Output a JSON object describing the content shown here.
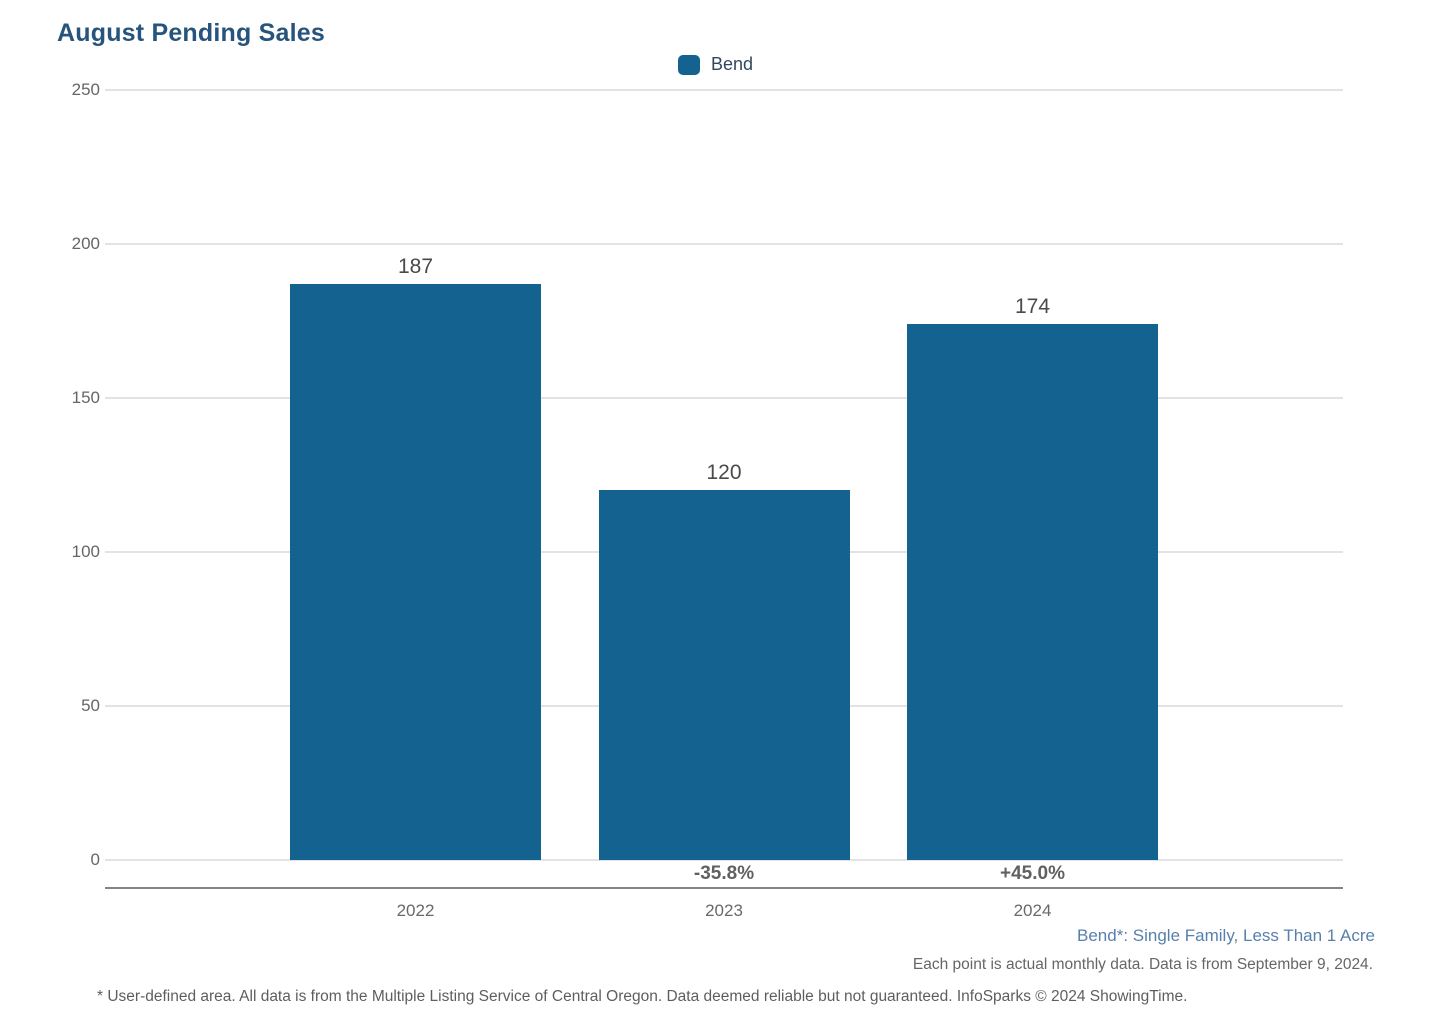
{
  "header": {
    "title": "August Pending Sales"
  },
  "legend": {
    "items": [
      {
        "label": "Bend",
        "color": "#136290",
        "swatch_icon": "legend-square-swatch"
      }
    ]
  },
  "chart_data": {
    "type": "bar",
    "title": "August Pending Sales",
    "categories": [
      "2022",
      "2023",
      "2024"
    ],
    "series": [
      {
        "name": "Bend",
        "color": "#136290",
        "values": [
          187,
          120,
          174
        ]
      }
    ],
    "bar_value_labels": [
      "187",
      "120",
      "174"
    ],
    "change_labels": [
      "",
      "-35.8%",
      "+45.0%"
    ],
    "xlabel": "",
    "ylabel": "",
    "ylim": [
      0,
      250
    ],
    "yticks": [
      0,
      50,
      100,
      150,
      200,
      250
    ],
    "grid": true,
    "legend_position": "top-center"
  },
  "footnotes": {
    "series_note": "Bend*: Single Family, Less Than 1 Acre",
    "data_note": "Each point is actual monthly data. Data is from September 9, 2024.",
    "disclaimer": "* User-defined area. All data is from the Multiple Listing Service of Central Oregon. Data deemed reliable but not guaranteed. InfoSparks © 2024 ShowingTime."
  },
  "colors": {
    "title": "#27547C",
    "bar": "#136290",
    "legend_text": "#33475C",
    "value_label": "#4A4A4A",
    "change_label": "#616161",
    "xtick_label": "#696969",
    "ytick_label": "#666666",
    "gridline": "#E3E3E3",
    "axis_line": "#848484",
    "footnote_blue": "#5880AC",
    "footnote_gray": "#666666"
  }
}
